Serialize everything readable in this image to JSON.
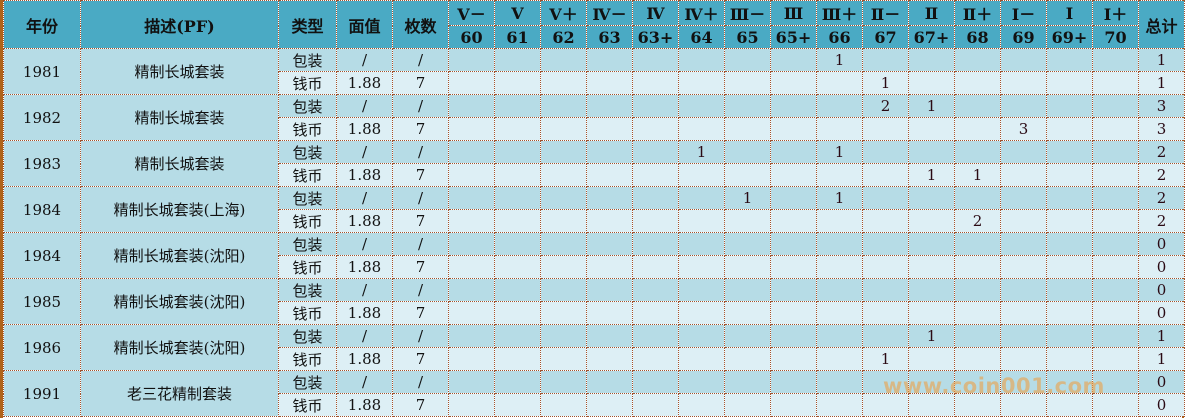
{
  "header": {
    "year": "年份",
    "desc": "描述(PF)",
    "type": "类型",
    "face": "面值",
    "count": "枚数",
    "total": "总计",
    "grades": [
      {
        "top": "Ⅴ－",
        "bottom": "60"
      },
      {
        "top": "Ⅴ",
        "bottom": "61"
      },
      {
        "top": "Ⅴ＋",
        "bottom": "62"
      },
      {
        "top": "Ⅳ－",
        "bottom": "63"
      },
      {
        "top": "Ⅳ",
        "bottom": "63+"
      },
      {
        "top": "Ⅳ＋",
        "bottom": "64"
      },
      {
        "top": "Ⅲ－",
        "bottom": "65"
      },
      {
        "top": "Ⅲ",
        "bottom": "65+"
      },
      {
        "top": "Ⅲ＋",
        "bottom": "66"
      },
      {
        "top": "Ⅱ－",
        "bottom": "67"
      },
      {
        "top": "Ⅱ",
        "bottom": "67+"
      },
      {
        "top": "Ⅱ＋",
        "bottom": "68"
      },
      {
        "top": "Ⅰ－",
        "bottom": "69"
      },
      {
        "top": "Ⅰ",
        "bottom": "69+"
      },
      {
        "top": "Ⅰ＋",
        "bottom": "70"
      }
    ]
  },
  "rows": [
    {
      "year": "1981",
      "desc": "精制长城套装",
      "pack": {
        "type": "包装",
        "face": "/",
        "count": "/",
        "grades": {
          "8": "1"
        },
        "total": "1"
      },
      "coin": {
        "type": "钱币",
        "face": "1.88",
        "count": "7",
        "grades": {
          "9": "1"
        },
        "total": "1"
      }
    },
    {
      "year": "1982",
      "desc": "精制长城套装",
      "pack": {
        "type": "包装",
        "face": "/",
        "count": "/",
        "grades": {
          "9": "2",
          "10": "1"
        },
        "total": "3"
      },
      "coin": {
        "type": "钱币",
        "face": "1.88",
        "count": "7",
        "grades": {
          "12": "3"
        },
        "total": "3"
      }
    },
    {
      "year": "1983",
      "desc": "精制长城套装",
      "pack": {
        "type": "包装",
        "face": "/",
        "count": "/",
        "grades": {
          "5": "1",
          "8": "1"
        },
        "total": "2"
      },
      "coin": {
        "type": "钱币",
        "face": "1.88",
        "count": "7",
        "grades": {
          "10": "1",
          "11": "1"
        },
        "total": "2"
      }
    },
    {
      "year": "1984",
      "desc": "精制长城套装(上海)",
      "pack": {
        "type": "包装",
        "face": "/",
        "count": "/",
        "grades": {
          "6": "1",
          "8": "1"
        },
        "total": "2"
      },
      "coin": {
        "type": "钱币",
        "face": "1.88",
        "count": "7",
        "grades": {
          "11": "2"
        },
        "total": "2"
      }
    },
    {
      "year": "1984",
      "desc": "精制长城套装(沈阳)",
      "pack": {
        "type": "包装",
        "face": "/",
        "count": "/",
        "grades": {},
        "total": "0"
      },
      "coin": {
        "type": "钱币",
        "face": "1.88",
        "count": "7",
        "grades": {},
        "total": "0"
      }
    },
    {
      "year": "1985",
      "desc": "精制长城套装(沈阳)",
      "pack": {
        "type": "包装",
        "face": "/",
        "count": "/",
        "grades": {},
        "total": "0"
      },
      "coin": {
        "type": "钱币",
        "face": "1.88",
        "count": "7",
        "grades": {},
        "total": "0"
      }
    },
    {
      "year": "1986",
      "desc": "精制长城套装(沈阳)",
      "pack": {
        "type": "包装",
        "face": "/",
        "count": "/",
        "grades": {
          "10": "1"
        },
        "total": "1"
      },
      "coin": {
        "type": "钱币",
        "face": "1.88",
        "count": "7",
        "grades": {
          "9": "1"
        },
        "total": "1"
      }
    },
    {
      "year": "1991",
      "desc": "老三花精制套装",
      "pack": {
        "type": "包装",
        "face": "/",
        "count": "/",
        "grades": {},
        "total": "0"
      },
      "coin": {
        "type": "钱币",
        "face": "1.88",
        "count": "7",
        "grades": {},
        "total": "0"
      }
    }
  ],
  "watermark": "www.coin001.com"
}
